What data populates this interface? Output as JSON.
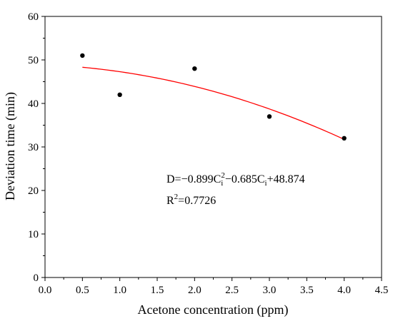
{
  "chart_data": {
    "type": "scatter",
    "xlabel": "Acetone concentration (ppm)",
    "ylabel": "Deviation time (min)",
    "xlim": [
      0.0,
      4.5
    ],
    "ylim": [
      0,
      60
    ],
    "xticks": [
      "0.0",
      "0.5",
      "1.0",
      "1.5",
      "2.0",
      "2.5",
      "3.0",
      "3.5",
      "4.0",
      "4.5"
    ],
    "yticks": [
      "0",
      "10",
      "20",
      "30",
      "40",
      "50",
      "60"
    ],
    "grid": false,
    "series": [
      {
        "kind": "scatter",
        "color": "#000000",
        "x": [
          0.5,
          1.0,
          2.0,
          3.0,
          4.0
        ],
        "y": [
          51,
          42,
          48,
          37,
          32
        ]
      },
      {
        "kind": "fit-line",
        "color": "#ff0000",
        "x_range": [
          0.5,
          4.0
        ],
        "coefficients": {
          "a": -0.899,
          "b": -0.685,
          "c": 48.874
        }
      }
    ],
    "annotation": {
      "equation_prefix": "D=−0.899C",
      "var_sub": "i",
      "var_sup": "2",
      "equation_mid": "−0.685C",
      "equation_suffix": "+48.874",
      "r2_prefix": "R",
      "r2_sup": "2",
      "r2_value": "=0.7726"
    }
  }
}
